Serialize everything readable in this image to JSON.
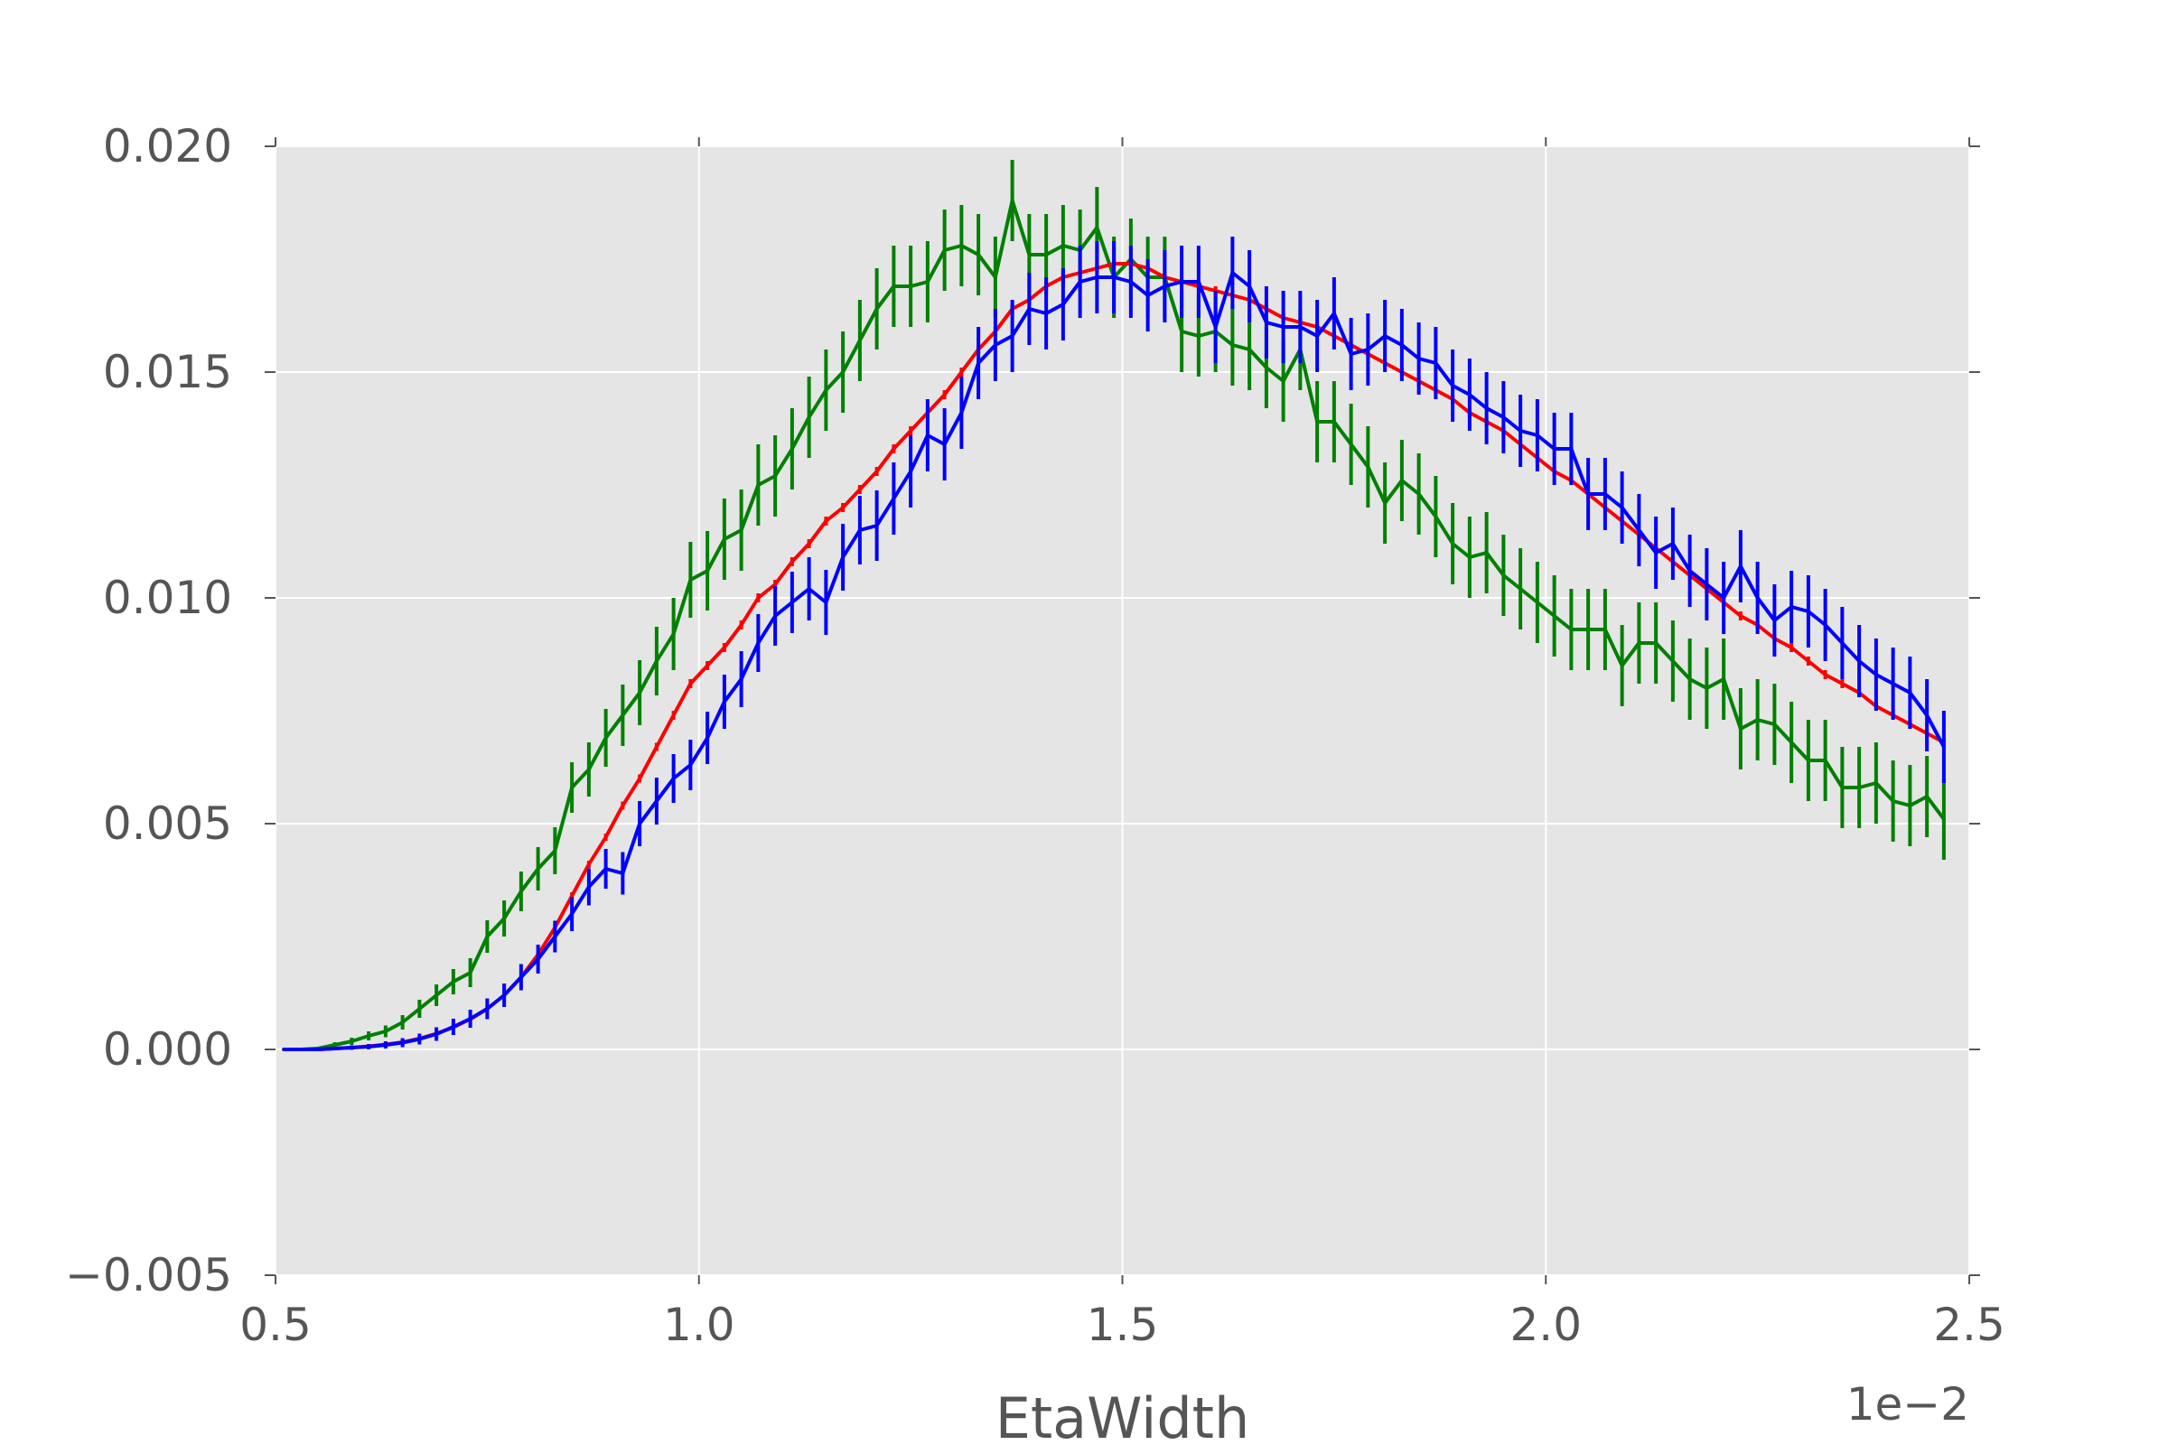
{
  "chart_data": {
    "type": "line",
    "title": "",
    "xlabel": "EtaWidth",
    "ylabel": "",
    "x_offset_label": "1e−2",
    "xlim": [
      0.5,
      2.5
    ],
    "ylim": [
      -0.005,
      0.02
    ],
    "x_ticks": [
      0.5,
      1.0,
      1.5,
      2.0,
      2.5
    ],
    "x_tick_labels": [
      "0.5",
      "1.0",
      "1.5",
      "2.0",
      "2.5"
    ],
    "y_ticks": [
      -0.005,
      0.0,
      0.005,
      0.01,
      0.015,
      0.02
    ],
    "y_tick_labels": [
      "−0.005",
      "0.000",
      "0.005",
      "0.010",
      "0.015",
      "0.020"
    ],
    "grid": true,
    "background": "#e5e5e5",
    "x": [
      0.51,
      0.53,
      0.55,
      0.57,
      0.59,
      0.61,
      0.63,
      0.65,
      0.67,
      0.69,
      0.71,
      0.73,
      0.75,
      0.77,
      0.79,
      0.81,
      0.83,
      0.85,
      0.87,
      0.89,
      0.91,
      0.93,
      0.95,
      0.97,
      0.99,
      1.01,
      1.03,
      1.05,
      1.07,
      1.09,
      1.11,
      1.13,
      1.15,
      1.17,
      1.19,
      1.21,
      1.23,
      1.25,
      1.27,
      1.29,
      1.31,
      1.33,
      1.35,
      1.37,
      1.39,
      1.41,
      1.43,
      1.45,
      1.47,
      1.49,
      1.51,
      1.53,
      1.55,
      1.57,
      1.59,
      1.61,
      1.63,
      1.65,
      1.67,
      1.69,
      1.71,
      1.73,
      1.75,
      1.77,
      1.79,
      1.81,
      1.83,
      1.85,
      1.87,
      1.89,
      1.91,
      1.93,
      1.95,
      1.97,
      1.99,
      2.01,
      2.03,
      2.05,
      2.07,
      2.09,
      2.11,
      2.13,
      2.15,
      2.17,
      2.19,
      2.21,
      2.23,
      2.25,
      2.27,
      2.29,
      2.31,
      2.33,
      2.35,
      2.37,
      2.39,
      2.41,
      2.43,
      2.45,
      2.47
    ],
    "series": [
      {
        "color": "#ff0000",
        "values": [
          0.0,
          0.0,
          0.0,
          2e-05,
          4e-05,
          7e-05,
          0.00011,
          0.00016,
          0.00024,
          0.00035,
          0.00049,
          0.00067,
          0.0009,
          0.0012,
          0.0016,
          0.0021,
          0.0027,
          0.0034,
          0.0041,
          0.0047,
          0.0054,
          0.006,
          0.0067,
          0.0074,
          0.0081,
          0.0085,
          0.0089,
          0.0094,
          0.01,
          0.0103,
          0.0108,
          0.0112,
          0.0117,
          0.012,
          0.0124,
          0.0128,
          0.0133,
          0.0137,
          0.0141,
          0.0145,
          0.015,
          0.0155,
          0.0159,
          0.0164,
          0.0166,
          0.0169,
          0.0171,
          0.0172,
          0.0173,
          0.0174,
          0.0174,
          0.0173,
          0.0171,
          0.017,
          0.0169,
          0.0168,
          0.0167,
          0.0166,
          0.0164,
          0.0162,
          0.0161,
          0.016,
          0.0158,
          0.0156,
          0.0154,
          0.0152,
          0.015,
          0.0148,
          0.0146,
          0.0144,
          0.0141,
          0.0139,
          0.0137,
          0.0134,
          0.0131,
          0.0128,
          0.0126,
          0.0123,
          0.012,
          0.0117,
          0.0114,
          0.0111,
          0.0108,
          0.0105,
          0.0102,
          0.0099,
          0.0096,
          0.0094,
          0.0091,
          0.0089,
          0.0086,
          0.0083,
          0.0081,
          0.0079,
          0.0076,
          0.0074,
          0.0072,
          0.007,
          0.0068
        ],
        "errors": [
          2e-05,
          2e-05,
          2e-05,
          2e-05,
          2e-05,
          3e-05,
          3e-05,
          3e-05,
          4e-05,
          4e-05,
          5e-05,
          5e-05,
          6e-05,
          6e-05,
          7e-05,
          7e-05,
          7e-05,
          8e-05,
          8e-05,
          8e-05,
          9e-05,
          9e-05,
          9e-05,
          0.0001,
          0.0001,
          0.0001,
          0.0001,
          0.0001,
          0.0001,
          0.0001,
          0.0001,
          0.0001,
          0.0001,
          0.0001,
          0.0001,
          0.0001,
          0.0001,
          0.0001,
          0.0001,
          0.0001,
          0.0001,
          0.0001,
          0.0001,
          0.0001,
          0.0001,
          0.0001,
          0.0001,
          0.0001,
          0.0001,
          0.0001,
          0.0001,
          0.0001,
          0.0001,
          0.0001,
          0.0001,
          0.0001,
          0.0001,
          0.0001,
          0.0001,
          0.0001,
          0.0001,
          0.0001,
          0.0001,
          0.0001,
          0.0001,
          0.0001,
          0.0001,
          0.0001,
          0.0001,
          0.0001,
          0.0001,
          0.0001,
          0.0001,
          0.0001,
          0.0001,
          0.0001,
          0.0001,
          0.0001,
          0.0001,
          0.0001,
          0.0001,
          0.0001,
          0.0001,
          0.0001,
          0.0001,
          0.0001,
          0.0001,
          0.0001,
          0.0001,
          0.0001,
          0.0001,
          0.0001,
          0.0001,
          0.0001,
          0.0001,
          0.0001,
          0.0001,
          0.0001,
          0.0001
        ]
      },
      {
        "color": "#0000ff",
        "values": [
          0.0,
          0.0,
          0.0,
          2e-05,
          4e-05,
          6e-05,
          0.0001,
          0.00015,
          0.00023,
          0.00034,
          0.0005,
          0.00068,
          0.0009,
          0.0012,
          0.0016,
          0.002,
          0.0025,
          0.003,
          0.0036,
          0.004,
          0.0039,
          0.005,
          0.0055,
          0.006,
          0.0063,
          0.0069,
          0.0077,
          0.0082,
          0.009,
          0.0096,
          0.0099,
          0.0102,
          0.0099,
          0.0109,
          0.0115,
          0.0116,
          0.0122,
          0.0128,
          0.0136,
          0.0134,
          0.0141,
          0.0152,
          0.0156,
          0.0158,
          0.0164,
          0.0163,
          0.0165,
          0.017,
          0.0171,
          0.0171,
          0.017,
          0.0167,
          0.0169,
          0.017,
          0.017,
          0.016,
          0.0172,
          0.0169,
          0.0161,
          0.016,
          0.016,
          0.0158,
          0.0163,
          0.0154,
          0.0155,
          0.0158,
          0.0156,
          0.0153,
          0.0152,
          0.0147,
          0.0145,
          0.0142,
          0.014,
          0.0137,
          0.0136,
          0.0133,
          0.0133,
          0.0123,
          0.0123,
          0.012,
          0.0115,
          0.011,
          0.0112,
          0.0106,
          0.0103,
          0.01,
          0.0107,
          0.01,
          0.0095,
          0.0098,
          0.0097,
          0.0094,
          0.009,
          0.0086,
          0.0083,
          0.0081,
          0.0079,
          0.0074,
          0.0067
        ],
        "errors": [
          2e-05,
          2e-05,
          3e-05,
          4e-05,
          5e-05,
          6e-05,
          8e-05,
          0.0001,
          0.00012,
          0.00015,
          0.00018,
          0.0002,
          0.00023,
          0.00026,
          0.00029,
          0.00032,
          0.00035,
          0.00038,
          0.00041,
          0.00044,
          0.00047,
          0.0005,
          0.00052,
          0.00054,
          0.00056,
          0.00058,
          0.0006,
          0.00062,
          0.00064,
          0.00066,
          0.00068,
          0.0007,
          0.00072,
          0.00074,
          0.00076,
          0.00078,
          0.0008,
          0.0008,
          0.0008,
          0.0008,
          0.0008,
          0.0008,
          0.0008,
          0.0008,
          0.0008,
          0.0008,
          0.0008,
          0.0008,
          0.0008,
          0.0008,
          0.0008,
          0.0008,
          0.0008,
          0.0008,
          0.0008,
          0.0008,
          0.0008,
          0.0008,
          0.0008,
          0.0008,
          0.0008,
          0.0008,
          0.0008,
          0.0008,
          0.0008,
          0.0008,
          0.0008,
          0.0008,
          0.0008,
          0.0008,
          0.0008,
          0.0008,
          0.0008,
          0.0008,
          0.0008,
          0.0008,
          0.0008,
          0.0008,
          0.0008,
          0.0008,
          0.0008,
          0.0008,
          0.0008,
          0.0008,
          0.0008,
          0.0008,
          0.0008,
          0.0008,
          0.0008,
          0.0008,
          0.0008,
          0.0008,
          0.0008,
          0.0008,
          0.0008,
          0.0008,
          0.0008,
          0.0008,
          0.0008
        ]
      },
      {
        "color": "#008000",
        "values": [
          0.0,
          0.0,
          2e-05,
          0.0001,
          0.00018,
          0.0003,
          0.0004,
          0.0006,
          0.0009,
          0.0012,
          0.0015,
          0.0017,
          0.0025,
          0.0029,
          0.0035,
          0.004,
          0.0044,
          0.0058,
          0.0062,
          0.0069,
          0.0074,
          0.0079,
          0.0086,
          0.0092,
          0.0104,
          0.0106,
          0.0113,
          0.0115,
          0.0125,
          0.0127,
          0.0133,
          0.014,
          0.0146,
          0.015,
          0.0157,
          0.0164,
          0.0169,
          0.0169,
          0.017,
          0.0177,
          0.0178,
          0.0176,
          0.0171,
          0.0188,
          0.0176,
          0.0176,
          0.0178,
          0.0177,
          0.0182,
          0.0171,
          0.0175,
          0.0171,
          0.0171,
          0.0159,
          0.0158,
          0.0159,
          0.0156,
          0.0155,
          0.0151,
          0.0148,
          0.0155,
          0.0139,
          0.0139,
          0.0134,
          0.0129,
          0.0121,
          0.0126,
          0.0123,
          0.0118,
          0.0112,
          0.0109,
          0.011,
          0.0105,
          0.0102,
          0.0099,
          0.0096,
          0.0093,
          0.0093,
          0.0093,
          0.0085,
          0.009,
          0.009,
          0.0086,
          0.0082,
          0.008,
          0.0082,
          0.0071,
          0.0073,
          0.0072,
          0.0068,
          0.0064,
          0.0064,
          0.0058,
          0.0058,
          0.0059,
          0.0055,
          0.0054,
          0.0056,
          0.0051
        ],
        "errors": [
          2e-05,
          3e-05,
          4e-05,
          6e-05,
          8e-05,
          0.0001,
          0.00013,
          0.00016,
          0.0002,
          0.00024,
          0.00028,
          0.00032,
          0.00036,
          0.0004,
          0.00044,
          0.00048,
          0.00052,
          0.00056,
          0.0006,
          0.00064,
          0.00068,
          0.00072,
          0.00076,
          0.0008,
          0.00084,
          0.00088,
          0.0009,
          0.0009,
          0.0009,
          0.0009,
          0.0009,
          0.0009,
          0.0009,
          0.0009,
          0.0009,
          0.0009,
          0.0009,
          0.0009,
          0.0009,
          0.0009,
          0.0009,
          0.0009,
          0.0009,
          0.0009,
          0.0009,
          0.0009,
          0.0009,
          0.0009,
          0.0009,
          0.0009,
          0.0009,
          0.0009,
          0.0009,
          0.0009,
          0.0009,
          0.0009,
          0.0009,
          0.0009,
          0.0009,
          0.0009,
          0.0009,
          0.0009,
          0.0009,
          0.0009,
          0.0009,
          0.0009,
          0.0009,
          0.0009,
          0.0009,
          0.0009,
          0.0009,
          0.0009,
          0.0009,
          0.0009,
          0.0009,
          0.0009,
          0.0009,
          0.0009,
          0.0009,
          0.0009,
          0.0009,
          0.0009,
          0.0009,
          0.0009,
          0.0009,
          0.0009,
          0.0009,
          0.0009,
          0.0009,
          0.0009,
          0.0009,
          0.0009,
          0.0009,
          0.0009,
          0.0009,
          0.0009,
          0.0009,
          0.0009,
          0.0009
        ]
      }
    ]
  }
}
